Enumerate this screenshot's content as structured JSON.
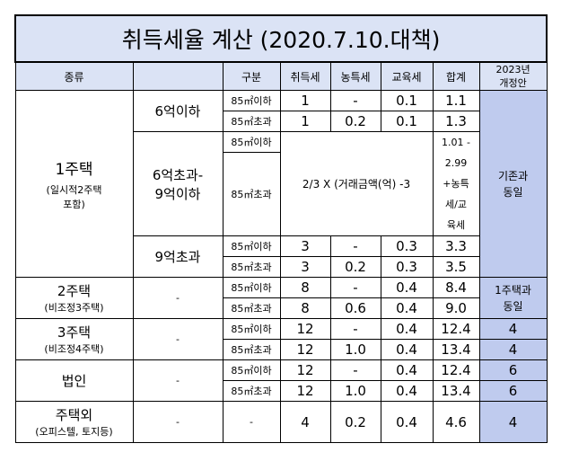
{
  "title": "취득세율  계산  (2020.7.10.대책)",
  "headers": {
    "col1": "종류",
    "col2": "",
    "col3": "구분",
    "col4": "취득세",
    "col5": "농특세",
    "col6": "교육세",
    "col7": "합계",
    "col8_line1": "2023년",
    "col8_line2": "개정안"
  },
  "one_house": {
    "name": "1주택",
    "note_line1": "(일시적2주택",
    "note_line2": "포함)",
    "tier1": {
      "label": "6억이하",
      "rows": [
        {
          "area": "85㎡이하",
          "acq": "1",
          "agri": "-",
          "edu": "0.1",
          "total": "1.1"
        },
        {
          "area": "85㎡초과",
          "acq": "1",
          "agri": "0.2",
          "edu": "0.1",
          "total": "1.3"
        }
      ]
    },
    "tier2": {
      "label_line1": "6억초과-",
      "label_line2": "9억이하",
      "area1": "85㎡이하",
      "area2": "85㎡초과",
      "formula": "2/3 X (거래금액(억) -3",
      "total_lines": [
        "1.01 -",
        "2.99",
        "+농특",
        "세/교",
        "육세"
      ]
    },
    "tier3": {
      "label": "9억초과",
      "rows": [
        {
          "area": "85㎡이하",
          "acq": "3",
          "agri": "-",
          "edu": "0.3",
          "total": "3.3"
        },
        {
          "area": "85㎡초과",
          "acq": "3",
          "agri": "0.2",
          "edu": "0.3",
          "total": "3.5"
        }
      ]
    },
    "reform_line1": "기존과",
    "reform_line2": "동일"
  },
  "two_house": {
    "name": "2주택",
    "note": "(비조정3주택)",
    "dash": "-",
    "rows": [
      {
        "area": "85㎡이하",
        "acq": "8",
        "agri": "-",
        "edu": "0.4",
        "total": "8.4"
      },
      {
        "area": "85㎡초과",
        "acq": "8",
        "agri": "0.6",
        "edu": "0.4",
        "total": "9.0"
      }
    ],
    "reform_line1": "1주택과",
    "reform_line2": "동일"
  },
  "three_house": {
    "name": "3주택",
    "note": "(비조정4주택)",
    "dash": "-",
    "rows": [
      {
        "area": "85㎡이하",
        "acq": "12",
        "agri": "-",
        "edu": "0.4",
        "total": "12.4",
        "reform": "4"
      },
      {
        "area": "85㎡초과",
        "acq": "12",
        "agri": "1.0",
        "edu": "0.4",
        "total": "13.4",
        "reform": "4"
      }
    ]
  },
  "corp": {
    "name": "법인",
    "dash": "-",
    "rows": [
      {
        "area": "85㎡이하",
        "acq": "12",
        "agri": "-",
        "edu": "0.4",
        "total": "12.4",
        "reform": "6"
      },
      {
        "area": "85㎡초과",
        "acq": "12",
        "agri": "1.0",
        "edu": "0.4",
        "total": "13.4",
        "reform": "6"
      }
    ]
  },
  "non_house": {
    "name": "주택외",
    "note": "(오피스텔, 토지등)",
    "dash1": "-",
    "dash2": "-",
    "acq": "4",
    "agri": "0.2",
    "edu": "0.4",
    "total": "4.6",
    "reform": "4"
  }
}
